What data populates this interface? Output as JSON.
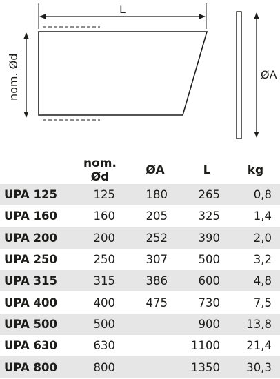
{
  "drawing": {
    "label_length": "L",
    "label_nominal_diameter": "nom. Ød",
    "label_outer_diameter": "ØA"
  },
  "table": {
    "headers": [
      "",
      "nom. Ød",
      "ØA",
      "L",
      "kg"
    ],
    "rows": [
      {
        "model": "UPA 125",
        "nom_d": "125",
        "dA": "180",
        "L": "265",
        "kg": "0,8"
      },
      {
        "model": "UPA 160",
        "nom_d": "160",
        "dA": "205",
        "L": "325",
        "kg": "1,4"
      },
      {
        "model": "UPA 200",
        "nom_d": "200",
        "dA": "252",
        "L": "390",
        "kg": "2,0"
      },
      {
        "model": "UPA 250",
        "nom_d": "250",
        "dA": "307",
        "L": "500",
        "kg": "3,2"
      },
      {
        "model": "UPA 315",
        "nom_d": "315",
        "dA": "386",
        "L": "600",
        "kg": "4,8"
      },
      {
        "model": "UPA 400",
        "nom_d": "400",
        "dA": "475",
        "L": "730",
        "kg": "7,5"
      },
      {
        "model": "UPA 500",
        "nom_d": "500",
        "dA": "",
        "L": "900",
        "kg": "13,8"
      },
      {
        "model": "UPA 630",
        "nom_d": "630",
        "dA": "",
        "L": "1100",
        "kg": "21,4"
      },
      {
        "model": "UPA 800",
        "nom_d": "800",
        "dA": "",
        "L": "1350",
        "kg": "30,3"
      }
    ]
  }
}
